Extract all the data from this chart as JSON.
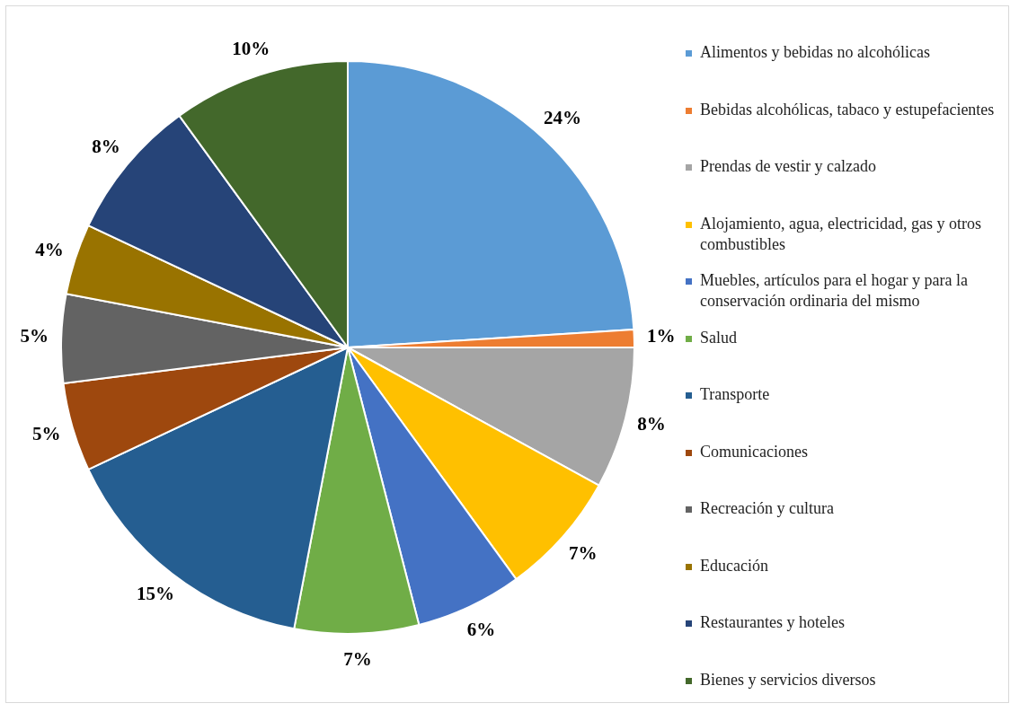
{
  "chart_data": {
    "type": "pie",
    "categories": [
      "Alimentos y bebidas no alcohólicas",
      "Bebidas alcohólicas, tabaco y estupefacientes",
      "Prendas de vestir y calzado",
      "Alojamiento, agua, electricidad, gas y otros combustibles",
      "Muebles, artículos para el hogar y para la conservación ordinaria del mismo",
      "Salud",
      "Transporte",
      "Comunicaciones",
      "Recreación y cultura",
      "Educación",
      "Restaurantes y hoteles",
      "Bienes y servicios diversos"
    ],
    "values": [
      24,
      1,
      8,
      7,
      6,
      7,
      15,
      5,
      5,
      4,
      8,
      10
    ],
    "colors": [
      "#5b9bd5",
      "#ed7d31",
      "#a5a5a5",
      "#ffc000",
      "#4472c4",
      "#70ad47",
      "#255e91",
      "#9e480e",
      "#636363",
      "#997300",
      "#264478",
      "#43682b"
    ],
    "value_labels": [
      "24%",
      "1%",
      "8%",
      "7%",
      "6%",
      "7%",
      "15%",
      "5%",
      "5%",
      "4%",
      "8%",
      "10%"
    ],
    "legend": "right"
  }
}
